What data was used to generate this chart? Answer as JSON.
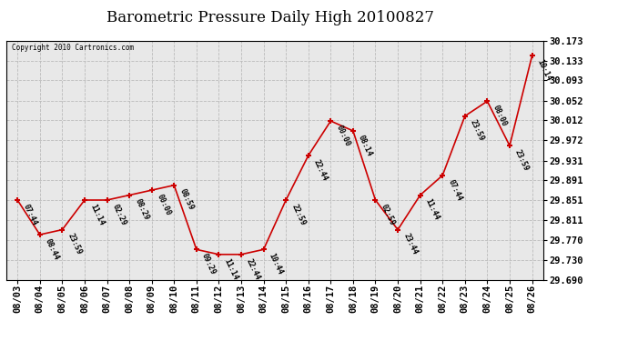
{
  "title": "Barometric Pressure Daily High 20100827",
  "copyright": "Copyright 2010 Cartronics.com",
  "x_labels": [
    "08/03",
    "08/04",
    "08/05",
    "08/06",
    "08/07",
    "08/08",
    "08/09",
    "08/10",
    "08/11",
    "08/12",
    "08/13",
    "08/14",
    "08/15",
    "08/16",
    "08/17",
    "08/18",
    "08/19",
    "08/20",
    "08/21",
    "08/22",
    "08/23",
    "08/24",
    "08/25",
    "08/26"
  ],
  "y_values": [
    29.851,
    29.781,
    29.791,
    29.851,
    29.851,
    29.861,
    29.871,
    29.881,
    29.751,
    29.741,
    29.741,
    29.751,
    29.851,
    29.941,
    30.011,
    29.991,
    29.851,
    29.791,
    29.861,
    29.901,
    30.021,
    30.051,
    29.961,
    30.143
  ],
  "time_labels": [
    "07:44",
    "08:44",
    "23:59",
    "11:14",
    "02:29",
    "08:29",
    "00:00",
    "08:59",
    "09:29",
    "11:14",
    "22:44",
    "10:44",
    "22:59",
    "22:44",
    "00:00",
    "08:14",
    "02:59",
    "23:44",
    "11:44",
    "07:44",
    "23:59",
    "08:00",
    "23:59",
    "10:14"
  ],
  "ylim_min": 29.69,
  "ylim_max": 30.173,
  "ytick_values": [
    29.69,
    29.73,
    29.77,
    29.811,
    29.851,
    29.891,
    29.931,
    29.972,
    30.012,
    30.052,
    30.093,
    30.133,
    30.173
  ],
  "line_color": "#cc0000",
  "marker_color": "#cc0000",
  "bg_color": "#e8e8e8",
  "grid_color": "#bbbbbb",
  "title_fontsize": 12,
  "tick_fontsize": 7.5,
  "annotation_fontsize": 6,
  "figwidth": 6.9,
  "figheight": 3.75,
  "dpi": 100
}
